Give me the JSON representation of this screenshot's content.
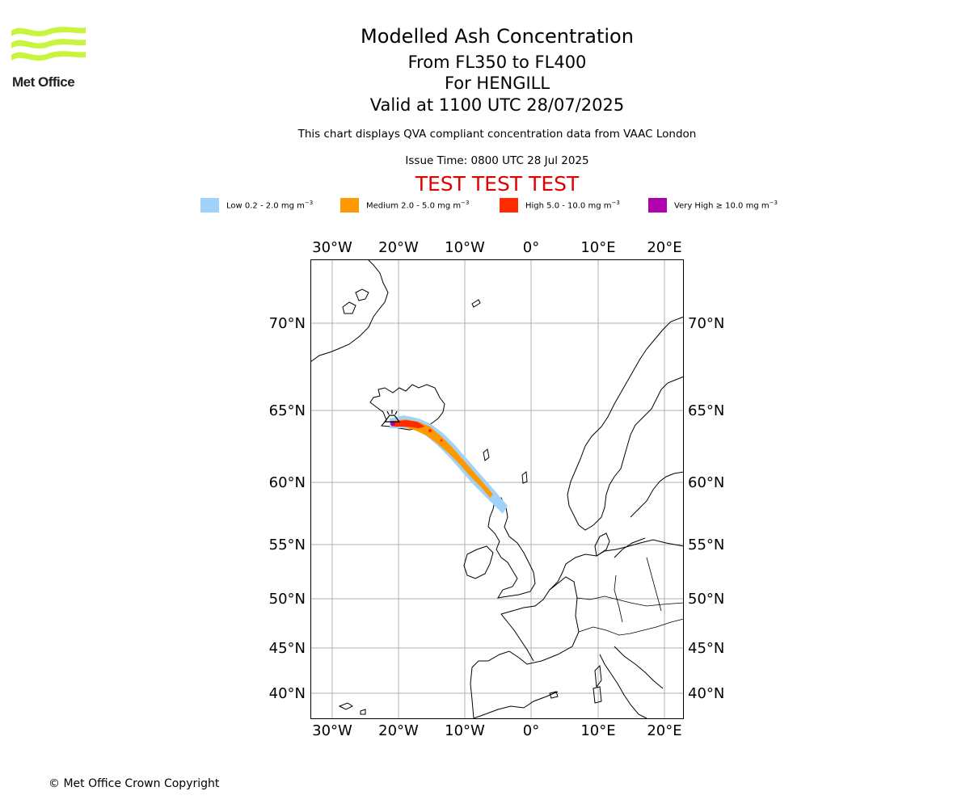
{
  "header": {
    "logo_text": "Met Office",
    "title": "Modelled Ash Concentration",
    "level_range": "From FL350 to FL400",
    "volcano": "For HENGILL",
    "valid_time": "Valid at 1100 UTC 28/07/2025",
    "description": "This chart displays QVA compliant concentration data from VAAC London",
    "issue_time": "Issue Time: 0800 UTC 28 Jul 2025",
    "banner": "TEST TEST TEST",
    "banner_color": "#e00000"
  },
  "legend": [
    {
      "prefix": "Low 0.2 - 2.0 mg m",
      "color": "#a0d2fa"
    },
    {
      "prefix": "Medium 2.0 - 5.0 mg m",
      "color": "#ff9900"
    },
    {
      "prefix": "High 5.0 - 10.0 mg m",
      "color": "#ff2a00"
    },
    {
      "prefix": "Very High ≥ 10.0 mg m",
      "color": "#b000b0"
    }
  ],
  "legend_unit_exp": "−3",
  "map": {
    "lon_labels": [
      "30°W",
      "20°W",
      "10°W",
      "0°",
      "10°E",
      "20°E"
    ],
    "lat_labels": [
      "70°N",
      "65°N",
      "60°N",
      "55°N",
      "50°N",
      "45°N",
      "40°N"
    ],
    "source_marker": "volcano-source-marker"
  },
  "footer": {
    "copyright": "© Met Office Crown Copyright"
  }
}
